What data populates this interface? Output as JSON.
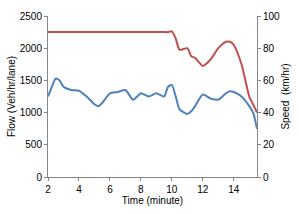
{
  "chart_data": {
    "type": "line",
    "x_label": "Time (minute)",
    "y_label": "Flow (Veh/hr/lane)",
    "y2_label": "Speed  (km/hr)",
    "x": [
      2,
      2.25,
      2.5,
      2.75,
      3,
      3.5,
      4,
      4.5,
      5,
      5.25,
      5.5,
      6,
      6.5,
      7,
      7.5,
      8,
      8.5,
      9,
      9.5,
      9.75,
      10,
      10.25,
      10.5,
      11,
      11.25,
      11.5,
      12,
      12.5,
      13,
      13.5,
      13.75,
      14,
      14.5,
      15,
      15.25,
      15.5
    ],
    "series": [
      {
        "color": "#4f81bd",
        "values": [
          1250,
          1400,
          1530,
          1500,
          1400,
          1350,
          1340,
          1250,
          1130,
          1100,
          1150,
          1300,
          1320,
          1350,
          1200,
          1300,
          1250,
          1300,
          1250,
          1400,
          1430,
          1250,
          1050,
          980,
          1020,
          1100,
          1280,
          1220,
          1200,
          1300,
          1330,
          1320,
          1250,
          1100,
          1000,
          750
        ]
      },
      {
        "color": "#c0504d",
        "axis": "y2",
        "values": [
          90,
          90,
          90,
          90,
          90,
          90,
          90,
          90,
          90,
          90,
          90,
          90,
          90,
          90,
          90,
          90,
          90,
          90,
          90,
          90,
          90.5,
          86,
          79,
          80,
          75,
          74,
          69,
          73,
          80,
          84,
          84,
          82,
          70,
          50,
          45,
          40
        ]
      }
    ],
    "xlim": [
      2,
      15.5
    ],
    "xticks": [
      2,
      4,
      6,
      8,
      10,
      12,
      14
    ],
    "ylim": [
      0,
      2500
    ],
    "yticks": [
      0,
      500,
      1000,
      1500,
      2000,
      2500
    ],
    "y2lim": [
      0,
      100
    ],
    "y2ticks": [
      0,
      20,
      40,
      60,
      80,
      100
    ],
    "grid": false
  }
}
